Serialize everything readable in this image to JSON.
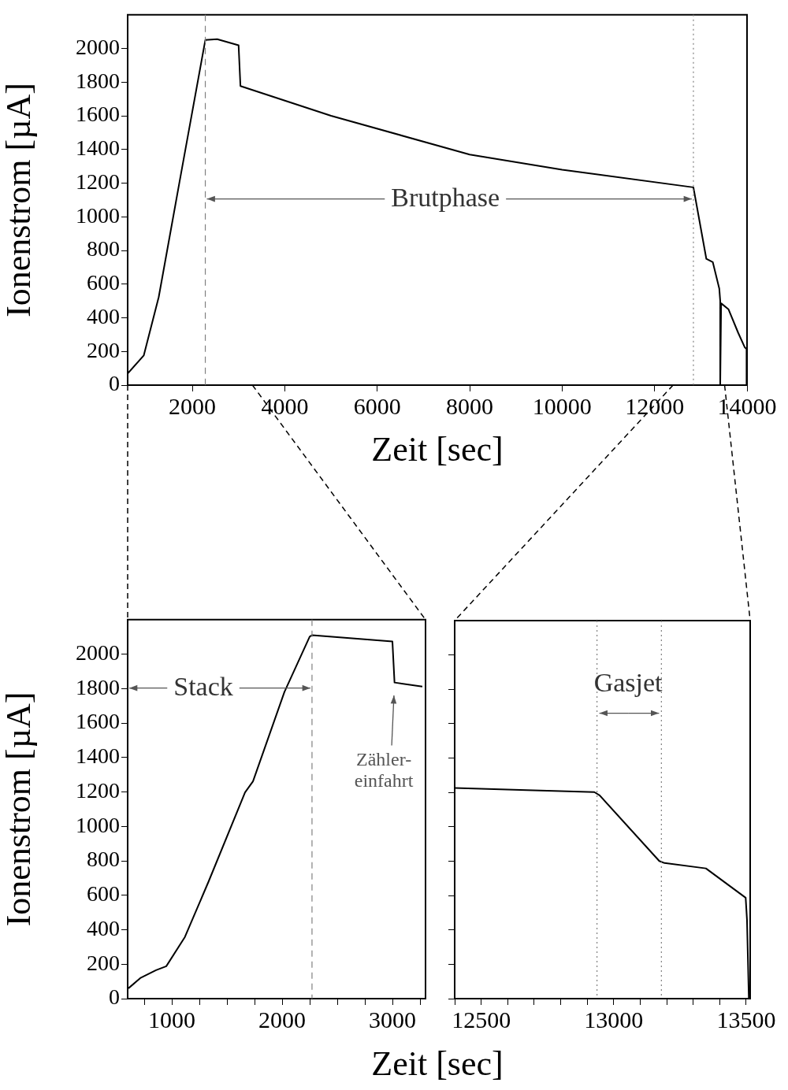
{
  "chart_data": [
    {
      "type": "line",
      "xlabel": "Zeit [sec]",
      "ylabel": "Ionenstrom [µA]",
      "marker": "none",
      "line_style": "solid",
      "xlim": [
        600,
        14000
      ],
      "ylim": [
        0,
        2200
      ],
      "xticks": [
        2000,
        4000,
        6000,
        8000,
        10000,
        12000,
        14000
      ],
      "yticks": [
        0,
        200,
        400,
        600,
        800,
        1000,
        1200,
        1400,
        1600,
        1800,
        2000
      ],
      "series": [
        {
          "color": "#000000",
          "x": [
            600,
            948,
            1272,
            1720,
            2280,
            2537,
            3000,
            3040,
            5000,
            8000,
            10000,
            12840,
            13120,
            13260,
            13400,
            13420,
            13420,
            13440,
            13600,
            13810,
            13950,
            13990,
            13990
          ],
          "values": [
            69,
            176,
            523,
            1204,
            2050,
            2055,
            2019,
            1777,
            1600,
            1370,
            1280,
            1175,
            750,
            730,
            573,
            500,
            0,
            486,
            450,
            310,
            225,
            215,
            0
          ]
        }
      ],
      "ref_lines": [
        {
          "axis": "x",
          "value": 2280,
          "color": "#808080",
          "line_style": "dashed"
        },
        {
          "axis": "x",
          "value": 12840,
          "color": "#808080",
          "line_style": "dotted"
        }
      ],
      "annotations": [
        {
          "text": "Brutphase",
          "x": 12840,
          "y": 1106
        }
      ]
    },
    {
      "type": "line",
      "xlabel": "Zeit [sec]",
      "ylabel": "Ionenstrom [µA]",
      "marker": "none",
      "line_style": "solid",
      "xlim": [
        600,
        3300
      ],
      "ylim": [
        0,
        2200
      ],
      "xticks": [
        {
          "value": 750,
          "label": null
        },
        1000,
        {
          "value": 1250,
          "label": null
        },
        {
          "value": 1500,
          "label": null
        },
        {
          "value": 1750,
          "label": null
        },
        2000,
        {
          "value": 2250,
          "label": null
        },
        {
          "value": 2500,
          "label": null
        },
        {
          "value": 2750,
          "label": null
        },
        3000,
        {
          "value": 3250,
          "label": null
        }
      ],
      "yticks": [
        0,
        200,
        400,
        600,
        800,
        1000,
        1200,
        1400,
        1600,
        1800,
        2000
      ],
      "series": [
        {
          "color": "#000000",
          "x": [
            607,
            714,
            857,
            950,
            1119,
            1333,
            1664,
            1736,
            2021,
            2250,
            2271,
            3000,
            3019,
            3271
          ],
          "values": [
            60,
            119,
            165,
            188,
            358,
            679,
            1197,
            1261,
            1780,
            2101,
            2110,
            2073,
            1835,
            1812
          ]
        }
      ],
      "ref_lines": [
        {
          "axis": "x",
          "value": 2271,
          "color": "#808080",
          "line_style": "dashed"
        }
      ],
      "annotations": [
        {
          "text": "Stack",
          "x": 2271,
          "y": 1803
        },
        "Zähler-\neinfahrt"
      ]
    },
    {
      "type": "line",
      "marker": "none",
      "line_style": "solid",
      "tick_labels": "x",
      "xlim": [
        12400,
        13515
      ],
      "ylim": [
        0,
        2200
      ],
      "xticks": [
        {
          "value": 12400,
          "label": null
        },
        12500,
        {
          "value": 12600,
          "label": null
        },
        {
          "value": 12700,
          "label": null
        },
        {
          "value": 12800,
          "label": null
        },
        {
          "value": 12900,
          "label": null
        },
        13000,
        {
          "value": 13100,
          "label": null
        },
        {
          "value": 13200,
          "label": null
        },
        {
          "value": 13300,
          "label": null
        },
        {
          "value": 13400,
          "label": null
        },
        13500
      ],
      "yticks": [
        0,
        200,
        400,
        600,
        800,
        1000,
        1200,
        1400,
        1600,
        1800,
        2000
      ],
      "series": [
        {
          "color": "#000000",
          "x": [
            12400,
            12672,
            12927,
            12947,
            13172,
            13192,
            13348,
            13498,
            13503,
            13510
          ],
          "values": [
            1226,
            1214,
            1202,
            1183,
            801,
            789,
            758,
            587,
            459,
            0
          ]
        }
      ],
      "ref_lines": [
        {
          "axis": "x",
          "value": 12937,
          "color": "#808080",
          "line_style": "dotted"
        },
        {
          "axis": "x",
          "value": 13180,
          "color": "#808080",
          "line_style": "dotted"
        }
      ],
      "annotations": [
        "Gasjet"
      ]
    }
  ]
}
